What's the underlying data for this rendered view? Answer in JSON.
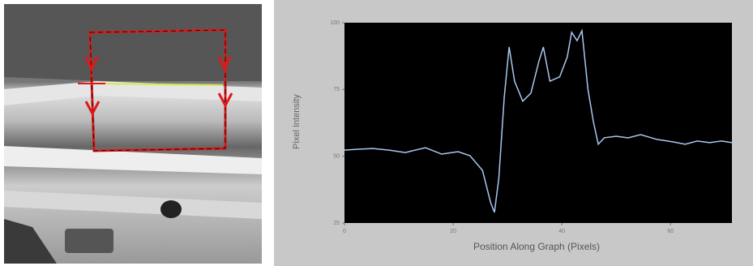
{
  "chart_data": {
    "type": "line",
    "x_label": "Position Along Graph (Pixels)",
    "y_label": "Pixel Intensity",
    "x": [
      0,
      2.2,
      5.2,
      8.2,
      11.2,
      14.9,
      17.9,
      20.9,
      23.1,
      25.4,
      26.9,
      27.6,
      28.4,
      29.4,
      30.3,
      31.3,
      32.8,
      34.3,
      35.8,
      36.6,
      37.8,
      39.6,
      41.0,
      41.8,
      42.8,
      43.7,
      44.8,
      45.8,
      46.7,
      47.8,
      50.0,
      52.2,
      54.5,
      57.5,
      60.4,
      62.7,
      64.9,
      67.2,
      69.4,
      71.3
    ],
    "series": [
      {
        "color": "#a8c8f0",
        "values": [
          52.3,
          52.6,
          52.9,
          52.3,
          51.4,
          53.2,
          50.8,
          51.7,
          50.2,
          44.7,
          32.6,
          29.0,
          41.7,
          72.1,
          90.9,
          78.1,
          70.6,
          73.6,
          85.7,
          90.9,
          78.1,
          79.7,
          87.2,
          96.4,
          93.3,
          97.0,
          75.1,
          63.0,
          54.5,
          56.9,
          57.5,
          56.9,
          58.1,
          56.3,
          55.4,
          54.5,
          55.7,
          55.1,
          55.7,
          55.1
        ]
      }
    ],
    "xlim": [
      0,
      71.3
    ],
    "xticks": [
      0,
      20,
      40,
      60
    ],
    "ylim": [
      25,
      100
    ],
    "yticks": [
      25,
      50,
      75,
      100
    ]
  }
}
